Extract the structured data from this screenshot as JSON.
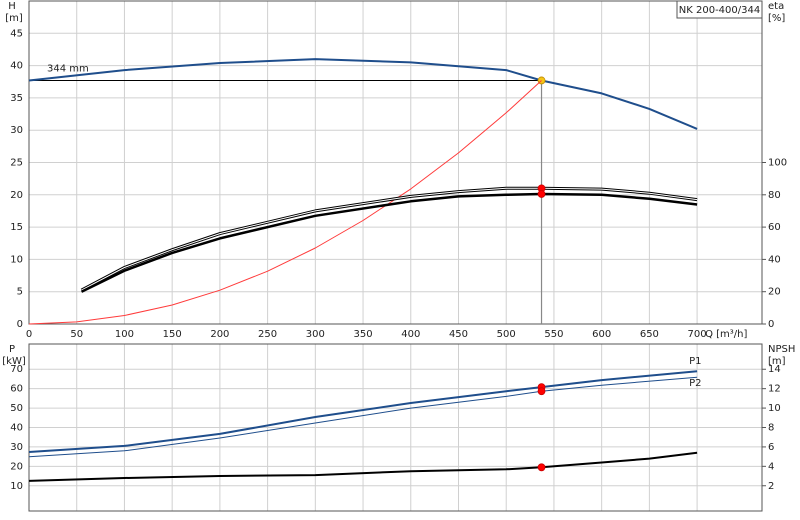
{
  "chart_data": [
    {
      "type": "line",
      "title": "NK 200-400/344",
      "x_label": "Q [m³/h]",
      "y_label": "H",
      "y_unit": "[m]",
      "y2_label": "eta",
      "y2_unit": "[%]",
      "annotation": "344 mm",
      "xlim": [
        0,
        768
      ],
      "xticks": [
        0,
        50,
        100,
        150,
        200,
        250,
        300,
        350,
        400,
        450,
        500,
        550,
        600,
        650,
        700
      ],
      "ylim": [
        0,
        50
      ],
      "yticks": [
        0,
        5,
        10,
        15,
        20,
        25,
        30,
        35,
        40,
        45
      ],
      "y2lim": [
        0,
        200
      ],
      "y2ticks": [
        0,
        20,
        40,
        60,
        80,
        100
      ],
      "grid": true,
      "duty_point": {
        "x": 537,
        "y": 37.7
      },
      "series": [
        {
          "color": "#1f4e8c",
          "width": 2,
          "marker": "#f5c518",
          "x": [
            0,
            100,
            200,
            300,
            400,
            500,
            537,
            600,
            650,
            700
          ],
          "values": [
            37.7,
            39.3,
            40.4,
            41.0,
            40.5,
            39.3,
            37.7,
            35.7,
            33.3,
            30.2
          ]
        },
        {
          "color": "#ff3b3b",
          "width": 1,
          "x": [
            0,
            50,
            100,
            150,
            200,
            250,
            300,
            350,
            400,
            450,
            500,
            537
          ],
          "values": [
            0,
            0.33,
            1.31,
            2.94,
            5.23,
            8.17,
            11.77,
            16.02,
            20.92,
            26.48,
            32.69,
            37.7
          ]
        },
        {
          "color": "#000000",
          "width": 3,
          "double": true,
          "axis": "y2",
          "marker": "#ff0000",
          "x": [
            55,
            100,
            150,
            200,
            300,
            400,
            450,
            500,
            537,
            600,
            650,
            700
          ],
          "values": [
            21,
            35,
            46,
            56,
            70,
            79,
            82,
            84,
            84,
            83.5,
            81,
            77
          ]
        },
        {
          "color": "#000000",
          "width": 2.5,
          "axis": "y2",
          "marker": "#ff0000",
          "x": [
            55,
            100,
            150,
            200,
            300,
            400,
            450,
            500,
            537,
            600,
            650,
            700
          ],
          "values": [
            20,
            33,
            44,
            53,
            67,
            76,
            79,
            80,
            80.5,
            80,
            77.5,
            74
          ]
        }
      ]
    },
    {
      "type": "line",
      "y_label": "P",
      "y_unit": "[kW]",
      "y2_label": "NPSH",
      "y2_unit": "[m]",
      "xlim": [
        0,
        768
      ],
      "xticks": [
        0,
        50,
        100,
        150,
        200,
        250,
        300,
        350,
        400,
        450,
        500,
        550,
        600,
        650,
        700
      ],
      "ylim": [
        -3,
        83
      ],
      "yticks": [
        10,
        20,
        30,
        40,
        50,
        60,
        70
      ],
      "y2lim": [
        -0.6,
        16.6
      ],
      "y2ticks": [
        2,
        4,
        6,
        8,
        10,
        12,
        14
      ],
      "grid": true,
      "series": [
        {
          "name": "P1",
          "color": "#1f4e8c",
          "width": 2,
          "marker": "#ff0000",
          "x": [
            0,
            100,
            200,
            300,
            400,
            500,
            537,
            600,
            700
          ],
          "values": [
            27.4,
            30.5,
            36.7,
            45.4,
            52.6,
            58.7,
            60.8,
            64.4,
            69
          ]
        },
        {
          "name": "P2",
          "color": "#1f4e8c",
          "width": 1,
          "marker": "#ff0000",
          "x": [
            0,
            100,
            200,
            300,
            400,
            500,
            537,
            600,
            700
          ],
          "values": [
            24.9,
            28,
            34.6,
            42.3,
            50,
            56,
            58.7,
            61.8,
            65.9
          ]
        },
        {
          "color": "#000000",
          "width": 2,
          "axis": "y2",
          "marker": "#ff0000",
          "x": [
            0,
            100,
            200,
            300,
            400,
            500,
            537,
            600,
            650,
            700
          ],
          "values": [
            2.5,
            2.8,
            3.0,
            3.1,
            3.5,
            3.7,
            3.9,
            4.4,
            4.8,
            5.4
          ]
        }
      ]
    }
  ]
}
